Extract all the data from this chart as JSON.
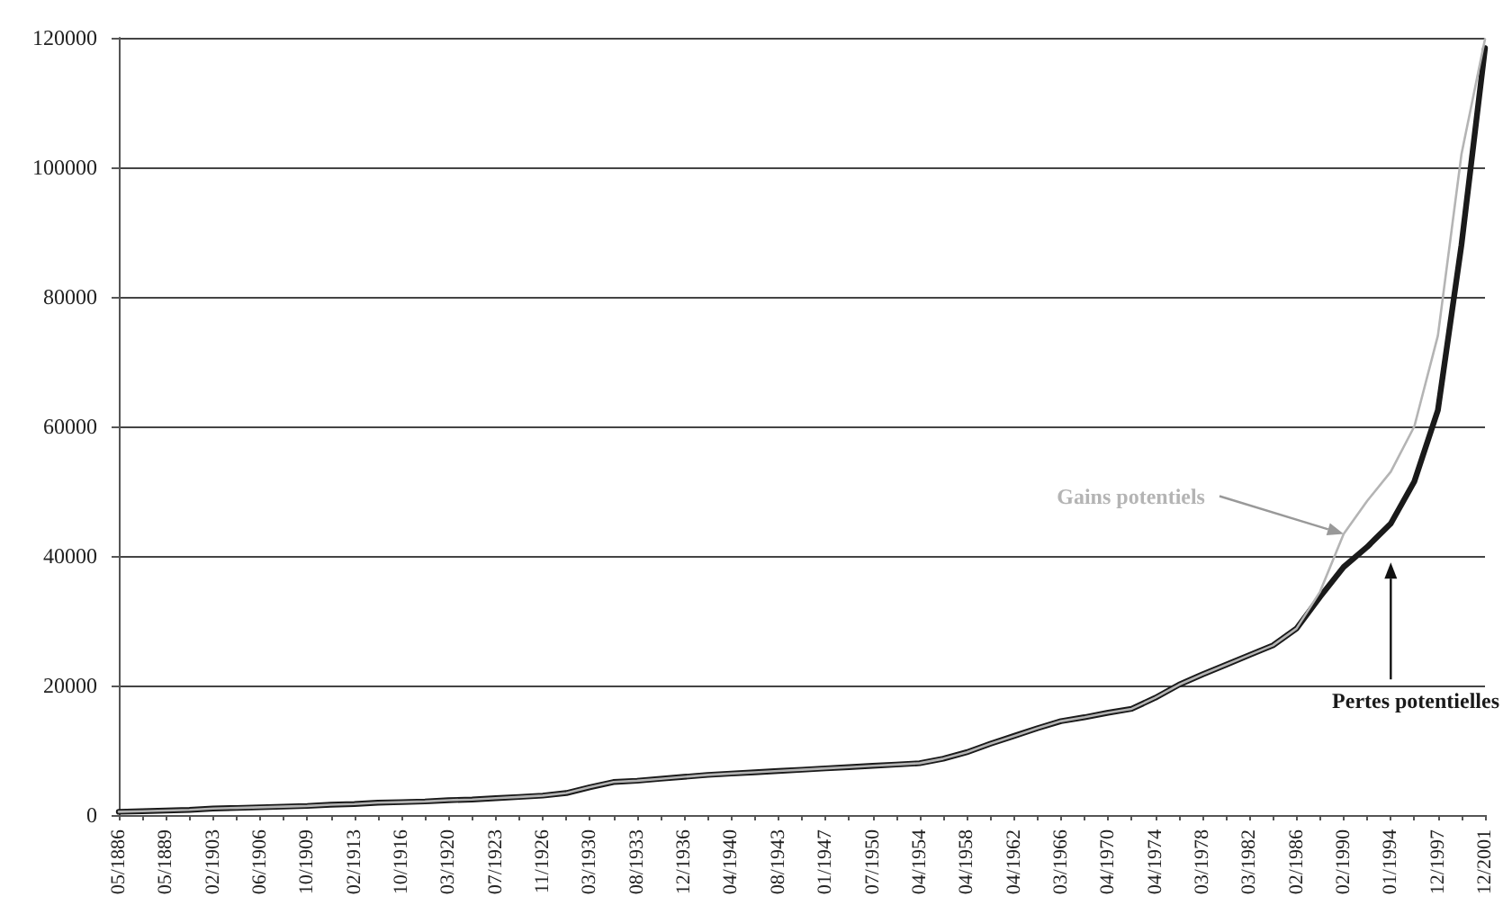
{
  "chart_data": {
    "type": "line",
    "categories": [
      "05/1886",
      null,
      "05/1889",
      null,
      "02/1903",
      null,
      "06/1906",
      null,
      "10/1909",
      null,
      "02/1913",
      null,
      "10/1916",
      null,
      "03/1920",
      null,
      "07/1923",
      null,
      "11/1926",
      null,
      "03/1930",
      null,
      "08/1933",
      null,
      "12/1936",
      null,
      "04/1940",
      null,
      "08/1943",
      null,
      "01/1947",
      null,
      "07/1950",
      null,
      "04/1954",
      null,
      "04/1958",
      null,
      "04/1962",
      null,
      "03/1966",
      null,
      "04/1970",
      null,
      "04/1974",
      null,
      "03/1978",
      null,
      "03/1982",
      null,
      "02/1986",
      null,
      "02/1990",
      null,
      "01/1994",
      null,
      "12/1997",
      null,
      "12/2001"
    ],
    "series": [
      {
        "name": "Pertes potentielles",
        "color": "#1a1a1a",
        "values": [
          500,
          600,
          700,
          800,
          1000,
          1100,
          1200,
          1300,
          1400,
          1600,
          1700,
          1900,
          2000,
          2100,
          2300,
          2400,
          2600,
          2800,
          3000,
          3400,
          4300,
          5100,
          5300,
          5600,
          5900,
          6200,
          6400,
          6600,
          6800,
          7000,
          7200,
          7400,
          7600,
          7800,
          8000,
          8700,
          9700,
          11000,
          12200,
          13400,
          14500,
          15100,
          15800,
          16400,
          18100,
          20100,
          21700,
          23200,
          24700,
          26200,
          28800,
          33700,
          38300,
          41400,
          45000,
          51500,
          62500,
          88000,
          118400
        ]
      },
      {
        "name": "Gains potentiels",
        "color": "#b4b4b4",
        "values": [
          500,
          600,
          700,
          800,
          1000,
          1100,
          1200,
          1300,
          1400,
          1600,
          1700,
          1900,
          2000,
          2100,
          2300,
          2400,
          2600,
          2800,
          3000,
          3400,
          4300,
          5100,
          5300,
          5600,
          5900,
          6200,
          6400,
          6600,
          6800,
          7000,
          7200,
          7400,
          7600,
          7800,
          8000,
          8700,
          9700,
          11000,
          12200,
          13400,
          14500,
          15100,
          15800,
          16400,
          18100,
          20100,
          21700,
          23200,
          24700,
          26200,
          28800,
          34500,
          43400,
          48500,
          53000,
          60000,
          74000,
          102000,
          119800
        ]
      }
    ],
    "ylim": [
      0,
      120000
    ],
    "yticks": [
      0,
      20000,
      40000,
      60000,
      80000,
      100000,
      120000
    ],
    "grid": "y",
    "marker": "none",
    "line_style": "solid"
  }
}
